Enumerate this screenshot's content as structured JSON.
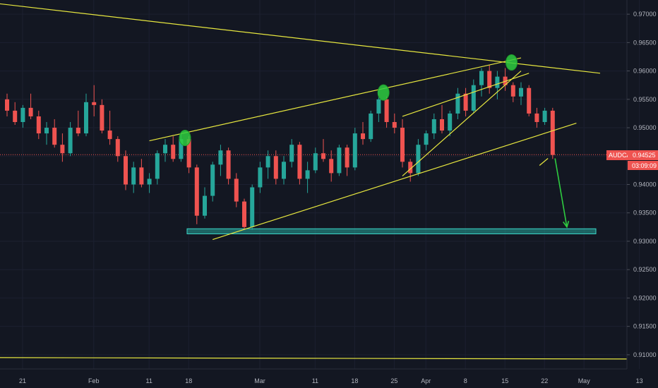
{
  "colors": {
    "background": "#131722",
    "grid": "#1c2030",
    "up_candle": "#26a69a",
    "down_candle": "#ef5350",
    "trendline": "#e7e73f",
    "marker": "#2ecc40",
    "support_zone": "#26a69a",
    "price_line": "#ef5350",
    "axis_text": "#b2b5be"
  },
  "chart_data": {
    "type": "candlestick",
    "symbol": "AUDCAD",
    "last_price": "0.94525",
    "countdown": "03:09:09",
    "y_ticks": [
      "0.97000",
      "0.96500",
      "0.96000",
      "0.95500",
      "0.95000",
      "0.94500",
      "0.94000",
      "0.93500",
      "0.93000",
      "0.92500",
      "0.92000",
      "0.91500",
      "0.91000"
    ],
    "x_ticks": [
      "21",
      "Feb",
      "11",
      "18",
      "Mar",
      "11",
      "18",
      "25",
      "Apr",
      "8",
      "15",
      "22",
      "May",
      "13"
    ],
    "x_tick_offsets": [
      0,
      9,
      16,
      21,
      30,
      37,
      42,
      47,
      51,
      56,
      61,
      66,
      71,
      78
    ],
    "ylim": [
      0.9075,
      0.9725
    ],
    "support_zone": [
      0.9313,
      0.9322
    ],
    "horizontal_line": 0.9095,
    "pattern_lines": [
      {
        "name": "descending resistance",
        "from": [
          -2,
          0.972
        ],
        "to": [
          75,
          0.9596
        ]
      },
      {
        "name": "rising wedge upper",
        "from": [
          18,
          0.9477
        ],
        "to": [
          65,
          0.9623
        ]
      },
      {
        "name": "rising wedge lower",
        "from": [
          26,
          0.9303
        ],
        "to": [
          72,
          0.9508
        ]
      },
      {
        "name": "inner rising channel",
        "from": [
          50,
          0.9415
        ],
        "to": [
          65,
          0.96
        ]
      },
      {
        "name": "inner support",
        "from": [
          50,
          0.952
        ],
        "to": [
          66,
          0.9596
        ]
      }
    ],
    "swing_high_markers": [
      {
        "x": 22.5,
        "y": 0.9482
      },
      {
        "x": 47.6,
        "y": 0.9562
      },
      {
        "x": 63.8,
        "y": 0.9615
      }
    ],
    "projection_arrow": {
      "from": [
        69.3,
        0.9446
      ],
      "to": [
        70.8,
        0.9325
      ]
    },
    "candles": [
      [
        0.955,
        0.956,
        0.952,
        0.953
      ],
      [
        0.953,
        0.9545,
        0.9505,
        0.951
      ],
      [
        0.951,
        0.954,
        0.95,
        0.9535
      ],
      [
        0.9535,
        0.956,
        0.9515,
        0.952
      ],
      [
        0.952,
        0.953,
        0.948,
        0.949
      ],
      [
        0.949,
        0.951,
        0.947,
        0.95
      ],
      [
        0.95,
        0.9515,
        0.9465,
        0.947
      ],
      [
        0.947,
        0.949,
        0.944,
        0.9455
      ],
      [
        0.9455,
        0.951,
        0.945,
        0.95
      ],
      [
        0.95,
        0.953,
        0.9485,
        0.949
      ],
      [
        0.949,
        0.956,
        0.9485,
        0.9545
      ],
      [
        0.9545,
        0.9575,
        0.952,
        0.954
      ],
      [
        0.954,
        0.955,
        0.949,
        0.9495
      ],
      [
        0.9495,
        0.953,
        0.947,
        0.948
      ],
      [
        0.948,
        0.9485,
        0.944,
        0.945
      ],
      [
        0.945,
        0.946,
        0.939,
        0.94
      ],
      [
        0.94,
        0.944,
        0.9385,
        0.943
      ],
      [
        0.943,
        0.9445,
        0.9395,
        0.94
      ],
      [
        0.94,
        0.942,
        0.9385,
        0.941
      ],
      [
        0.941,
        0.946,
        0.94,
        0.9455
      ],
      [
        0.9455,
        0.948,
        0.944,
        0.947
      ],
      [
        0.947,
        0.9485,
        0.944,
        0.9445
      ],
      [
        0.9445,
        0.949,
        0.944,
        0.948
      ],
      [
        0.948,
        0.9485,
        0.942,
        0.943
      ],
      [
        0.943,
        0.9435,
        0.933,
        0.9345
      ],
      [
        0.9345,
        0.9395,
        0.934,
        0.938
      ],
      [
        0.938,
        0.944,
        0.937,
        0.9435
      ],
      [
        0.9435,
        0.947,
        0.9415,
        0.946
      ],
      [
        0.946,
        0.9465,
        0.94,
        0.941
      ],
      [
        0.941,
        0.942,
        0.936,
        0.937
      ],
      [
        0.937,
        0.9375,
        0.932,
        0.9325
      ],
      [
        0.9325,
        0.94,
        0.932,
        0.9395
      ],
      [
        0.9395,
        0.944,
        0.9385,
        0.943
      ],
      [
        0.943,
        0.946,
        0.941,
        0.945
      ],
      [
        0.945,
        0.946,
        0.94,
        0.941
      ],
      [
        0.941,
        0.945,
        0.94,
        0.944
      ],
      [
        0.944,
        0.948,
        0.943,
        0.947
      ],
      [
        0.947,
        0.9475,
        0.94,
        0.941
      ],
      [
        0.941,
        0.944,
        0.9385,
        0.9425
      ],
      [
        0.9425,
        0.9465,
        0.942,
        0.9455
      ],
      [
        0.9455,
        0.948,
        0.944,
        0.9445
      ],
      [
        0.9445,
        0.946,
        0.9405,
        0.942
      ],
      [
        0.942,
        0.947,
        0.9415,
        0.9465
      ],
      [
        0.9465,
        0.947,
        0.9415,
        0.943
      ],
      [
        0.943,
        0.95,
        0.9425,
        0.949
      ],
      [
        0.949,
        0.951,
        0.947,
        0.948
      ],
      [
        0.948,
        0.953,
        0.9475,
        0.9525
      ],
      [
        0.9525,
        0.9565,
        0.951,
        0.955
      ],
      [
        0.955,
        0.9555,
        0.95,
        0.951
      ],
      [
        0.951,
        0.9525,
        0.949,
        0.95
      ],
      [
        0.95,
        0.9515,
        0.943,
        0.944
      ],
      [
        0.944,
        0.9445,
        0.9405,
        0.942
      ],
      [
        0.942,
        0.948,
        0.9415,
        0.947
      ],
      [
        0.947,
        0.9495,
        0.946,
        0.949
      ],
      [
        0.949,
        0.9525,
        0.948,
        0.9515
      ],
      [
        0.9515,
        0.954,
        0.949,
        0.9495
      ],
      [
        0.9495,
        0.953,
        0.9485,
        0.9525
      ],
      [
        0.9525,
        0.957,
        0.9515,
        0.956
      ],
      [
        0.956,
        0.957,
        0.952,
        0.953
      ],
      [
        0.953,
        0.9585,
        0.9525,
        0.9575
      ],
      [
        0.9575,
        0.9605,
        0.9555,
        0.96
      ],
      [
        0.96,
        0.961,
        0.956,
        0.957
      ],
      [
        0.957,
        0.96,
        0.955,
        0.959
      ],
      [
        0.959,
        0.9605,
        0.9565,
        0.9575
      ],
      [
        0.9575,
        0.958,
        0.9545,
        0.9555
      ],
      [
        0.9555,
        0.958,
        0.954,
        0.957
      ],
      [
        0.957,
        0.9575,
        0.952,
        0.9525
      ],
      [
        0.9525,
        0.9535,
        0.95,
        0.951
      ],
      [
        0.951,
        0.9535,
        0.9505,
        0.953
      ],
      [
        0.953,
        0.9535,
        0.9445,
        0.9452
      ]
    ]
  }
}
